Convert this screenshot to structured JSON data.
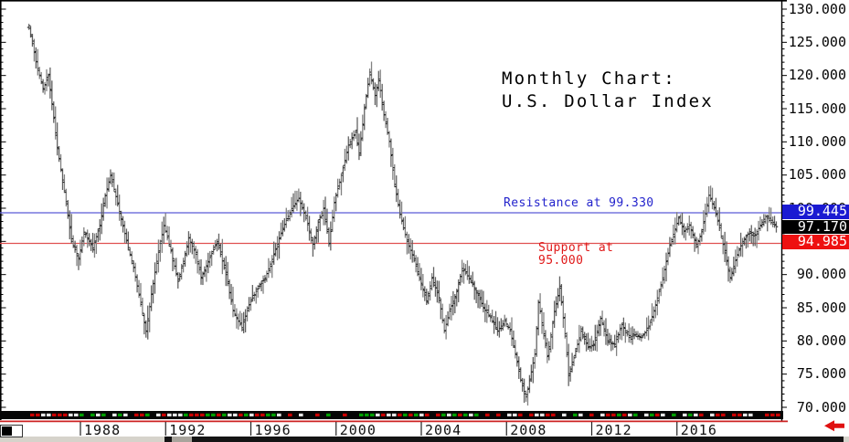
{
  "chart": {
    "title": {
      "line1": "Monthly Chart:",
      "line2": "U.S. Dollar Index"
    },
    "annotations": {
      "resistance": "Resistance at 99.330",
      "support_line1": "Support at",
      "support_line2": "95.000"
    },
    "price_boxes": {
      "high": "99.445",
      "last": "97.170",
      "low": "94.985"
    },
    "colors": {
      "resistance_line": "#5b5bd6",
      "resistance_text": "#2323cc",
      "support_line": "#e05050",
      "support_text": "#e01818",
      "box_high_bg": "#1a1ad2",
      "box_last_bg": "#000000",
      "box_low_bg": "#ee1111",
      "bar_gray": "#6f6f6f",
      "frame_black": "#000000",
      "bottom_red_line": "#cc2222",
      "arrow_red": "#e01010",
      "strip_green": "#00a000",
      "strip_red": "#cc0000"
    }
  },
  "chart_data": {
    "type": "bar",
    "subtype": "monthly-ohlc-bars",
    "title": "Monthly Chart: U.S. Dollar Index",
    "y_axis": {
      "range": [
        68.5,
        131
      ],
      "tick_values": [
        130,
        125,
        120,
        115,
        110,
        105,
        100,
        95,
        90,
        85,
        80,
        75,
        70
      ],
      "tick_labels": [
        "130.000",
        "125.000",
        "120.000",
        "115.000",
        "110.000",
        "105.000",
        "100.000",
        "95.000",
        "90.000",
        "85.000",
        "80.000",
        "75.000",
        "70.000"
      ]
    },
    "x_axis": {
      "range_years": [
        1985.5,
        2020.8
      ],
      "tick_years": [
        1988,
        1992,
        1996,
        2000,
        2004,
        2008,
        2012,
        2016
      ],
      "tick_labels": [
        "1988",
        "1992",
        "1996",
        "2000",
        "2004",
        "2008",
        "2012",
        "2016"
      ]
    },
    "resistance_level": 99.33,
    "support_level": 95.0,
    "price_box_values": {
      "high": 99.445,
      "last": 97.17,
      "low": 94.985
    },
    "grid": false,
    "series_anchors": [
      [
        1985.58,
        127.5
      ],
      [
        1985.92,
        122.0
      ],
      [
        1986.25,
        118.0
      ],
      [
        1986.5,
        120.0
      ],
      [
        1986.92,
        109.0
      ],
      [
        1987.33,
        101.0
      ],
      [
        1987.58,
        95.0
      ],
      [
        1987.92,
        92.5
      ],
      [
        1988.17,
        96.5
      ],
      [
        1988.58,
        94.0
      ],
      [
        1988.92,
        97.5
      ],
      [
        1989.17,
        102.0
      ],
      [
        1989.42,
        105.0
      ],
      [
        1989.83,
        99.5
      ],
      [
        1990.17,
        95.0
      ],
      [
        1990.5,
        91.0
      ],
      [
        1990.83,
        85.5
      ],
      [
        1991.08,
        81.5
      ],
      [
        1991.33,
        87.0
      ],
      [
        1991.58,
        92.0
      ],
      [
        1991.92,
        97.5
      ],
      [
        1992.25,
        93.5
      ],
      [
        1992.58,
        89.0
      ],
      [
        1992.83,
        92.0
      ],
      [
        1993.08,
        95.5
      ],
      [
        1993.42,
        93.0
      ],
      [
        1993.67,
        89.5
      ],
      [
        1994.0,
        92.0
      ],
      [
        1994.42,
        95.0
      ],
      [
        1994.83,
        90.0
      ],
      [
        1995.17,
        84.5
      ],
      [
        1995.58,
        82.0
      ],
      [
        1995.92,
        85.5
      ],
      [
        1996.25,
        87.5
      ],
      [
        1996.67,
        89.5
      ],
      [
        1997.08,
        93.0
      ],
      [
        1997.5,
        97.0
      ],
      [
        1997.92,
        100.0
      ],
      [
        1998.25,
        101.5
      ],
      [
        1998.58,
        98.5
      ],
      [
        1998.92,
        94.5
      ],
      [
        1999.17,
        98.0
      ],
      [
        1999.42,
        100.0
      ],
      [
        1999.67,
        94.5
      ],
      [
        1999.92,
        101.0
      ],
      [
        2000.25,
        105.0
      ],
      [
        2000.58,
        109.5
      ],
      [
        2000.92,
        111.5
      ],
      [
        2001.08,
        108.0
      ],
      [
        2001.33,
        115.0
      ],
      [
        2001.58,
        120.5
      ],
      [
        2001.83,
        117.0
      ],
      [
        2002.0,
        119.5
      ],
      [
        2002.25,
        114.0
      ],
      [
        2002.5,
        110.0
      ],
      [
        2002.75,
        103.5
      ],
      [
        2003.0,
        99.0
      ],
      [
        2003.33,
        95.0
      ],
      [
        2003.58,
        93.0
      ],
      [
        2003.92,
        89.5
      ],
      [
        2004.25,
        86.0
      ],
      [
        2004.5,
        89.5
      ],
      [
        2004.83,
        86.5
      ],
      [
        2005.08,
        81.5
      ],
      [
        2005.33,
        84.5
      ],
      [
        2005.67,
        87.5
      ],
      [
        2005.92,
        91.0
      ],
      [
        2006.33,
        89.0
      ],
      [
        2006.58,
        87.5
      ],
      [
        2006.92,
        85.0
      ],
      [
        2007.25,
        83.5
      ],
      [
        2007.58,
        81.5
      ],
      [
        2007.92,
        83.0
      ],
      [
        2008.17,
        81.5
      ],
      [
        2008.42,
        78.0
      ],
      [
        2008.67,
        74.0
      ],
      [
        2008.92,
        71.5
      ],
      [
        2009.08,
        74.0
      ],
      [
        2009.33,
        78.0
      ],
      [
        2009.5,
        86.0
      ],
      [
        2009.75,
        81.0
      ],
      [
        2009.92,
        77.5
      ],
      [
        2010.25,
        84.5
      ],
      [
        2010.5,
        88.0
      ],
      [
        2010.75,
        81.0
      ],
      [
        2010.92,
        74.5
      ],
      [
        2011.25,
        78.5
      ],
      [
        2011.5,
        81.5
      ],
      [
        2011.83,
        79.0
      ],
      [
        2012.08,
        79.5
      ],
      [
        2012.42,
        83.5
      ],
      [
        2012.75,
        80.0
      ],
      [
        2013.08,
        79.5
      ],
      [
        2013.42,
        82.5
      ],
      [
        2013.75,
        80.5
      ],
      [
        2014.08,
        81.0
      ],
      [
        2014.33,
        80.5
      ],
      [
        2014.67,
        82.0
      ],
      [
        2015.0,
        85.5
      ],
      [
        2015.33,
        89.5
      ],
      [
        2015.67,
        94.5
      ],
      [
        2016.08,
        98.5
      ],
      [
        2016.33,
        96.5
      ],
      [
        2016.58,
        97.5
      ],
      [
        2016.92,
        94.5
      ],
      [
        2017.17,
        96.5
      ],
      [
        2017.5,
        102.0
      ],
      [
        2017.75,
        100.0
      ],
      [
        2018.0,
        97.0
      ],
      [
        2018.33,
        92.0
      ],
      [
        2018.5,
        89.5
      ],
      [
        2018.83,
        93.0
      ],
      [
        2019.08,
        95.0
      ],
      [
        2019.42,
        96.5
      ],
      [
        2019.67,
        96.0
      ],
      [
        2019.92,
        97.5
      ],
      [
        2020.17,
        98.8
      ],
      [
        2020.42,
        97.8
      ],
      [
        2020.67,
        97.2
      ]
    ]
  }
}
